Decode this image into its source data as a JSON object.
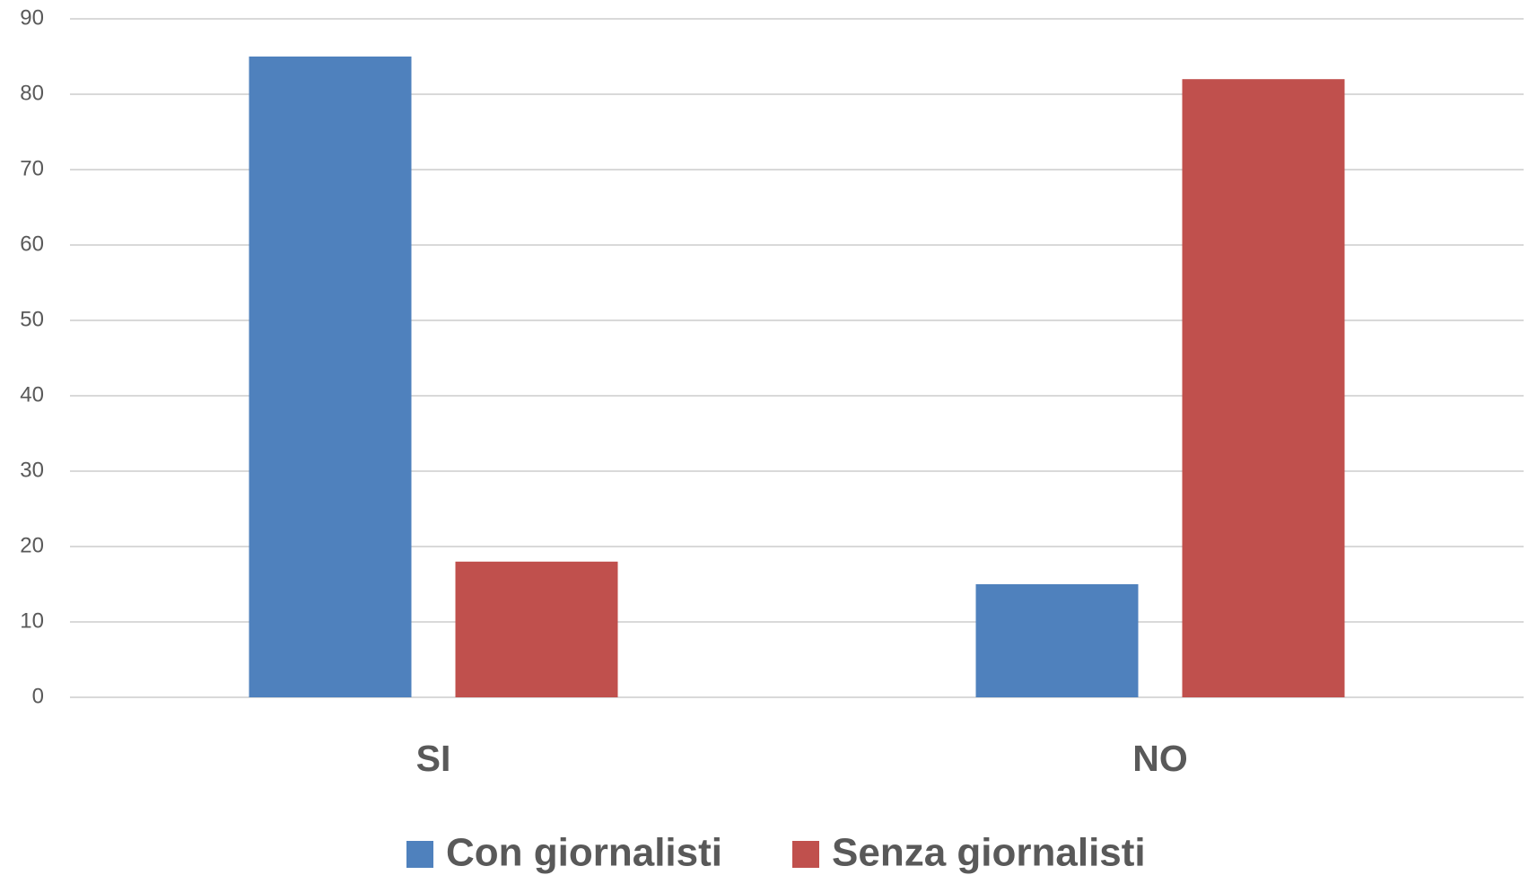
{
  "chart_data": {
    "type": "bar",
    "categories": [
      "SI",
      "NO"
    ],
    "series": [
      {
        "name": "Con giornalisti",
        "color": "#4f81bd",
        "values": [
          85,
          15
        ]
      },
      {
        "name": "Senza giornalisti",
        "color": "#c0504d",
        "values": [
          18,
          82
        ]
      }
    ],
    "ylim": [
      0,
      90
    ],
    "yticks": [
      0,
      10,
      20,
      30,
      40,
      50,
      60,
      70,
      80,
      90
    ],
    "grid": true,
    "legend": "bottom"
  }
}
